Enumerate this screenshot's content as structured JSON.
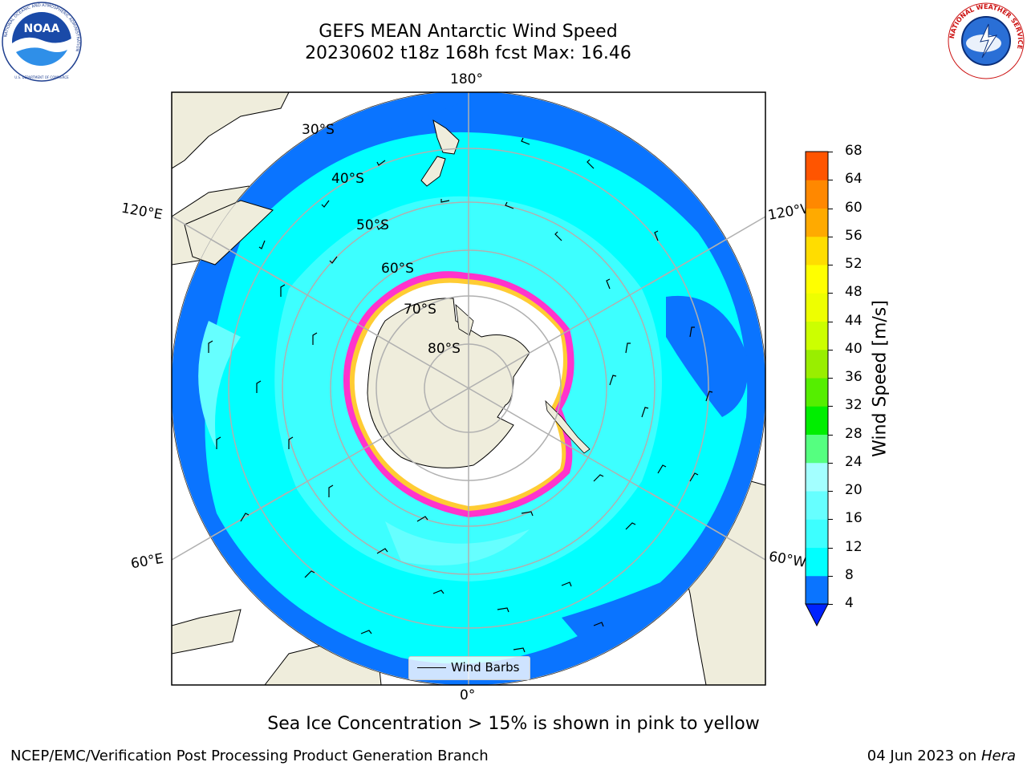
{
  "header": {
    "title_line1": "GEFS MEAN Antarctic Wind Speed",
    "title_line2": "20230602 t18z 168h fcst   Max: 16.46"
  },
  "logos": {
    "left": {
      "name": "NOAA",
      "ring_text": "NATIONAL OCEANIC AND ATMOSPHERIC ADMINISTRATION",
      "bottom_text": "U.S. DEPARTMENT OF COMMERCE"
    },
    "right": {
      "ring_text": "NATIONAL WEATHER SERVICE"
    }
  },
  "map": {
    "projection": "south-polar-stereographic",
    "lon_labels": {
      "top": "180°",
      "bottom": "0°",
      "upper_left": "120°E",
      "upper_right": "120°W",
      "lower_left": "60°E",
      "lower_right": "60°W"
    },
    "lat_labels": [
      "30°S",
      "40°S",
      "50°S",
      "60°S",
      "70°S",
      "80°S"
    ],
    "colors": {
      "land": "#efeddc",
      "ice_sheet": "#ffffff",
      "grid": "#b0b0b0",
      "sea_ice_pink": "#ff33cc",
      "sea_ice_yellow": "#ffcc33"
    },
    "legend_label": "Wind Barbs"
  },
  "colorbar": {
    "label": "Wind Speed [m/s]",
    "ticks": [
      "4",
      "8",
      "12",
      "16",
      "20",
      "24",
      "28",
      "32",
      "36",
      "40",
      "44",
      "48",
      "52",
      "56",
      "60",
      "64",
      "68"
    ],
    "colors": [
      "#0a74ff",
      "#00ffff",
      "#3dffff",
      "#66ffff",
      "#a3ffff",
      "#55ff80",
      "#00ee00",
      "#55ee00",
      "#99ee00",
      "#ccff00",
      "#eeff00",
      "#ffff00",
      "#ffdd00",
      "#ffaa00",
      "#ff8800",
      "#ff5500",
      "#ff2200",
      "#ff0000"
    ],
    "extend_color": "#0022ff"
  },
  "footer": {
    "note": "Sea Ice Concentration > 15% is shown in pink to yellow",
    "credit": "NCEP/EMC/Verification Post Processing Product Generation Branch",
    "date": "04 Jun 2023 on ",
    "host": "Hera"
  }
}
